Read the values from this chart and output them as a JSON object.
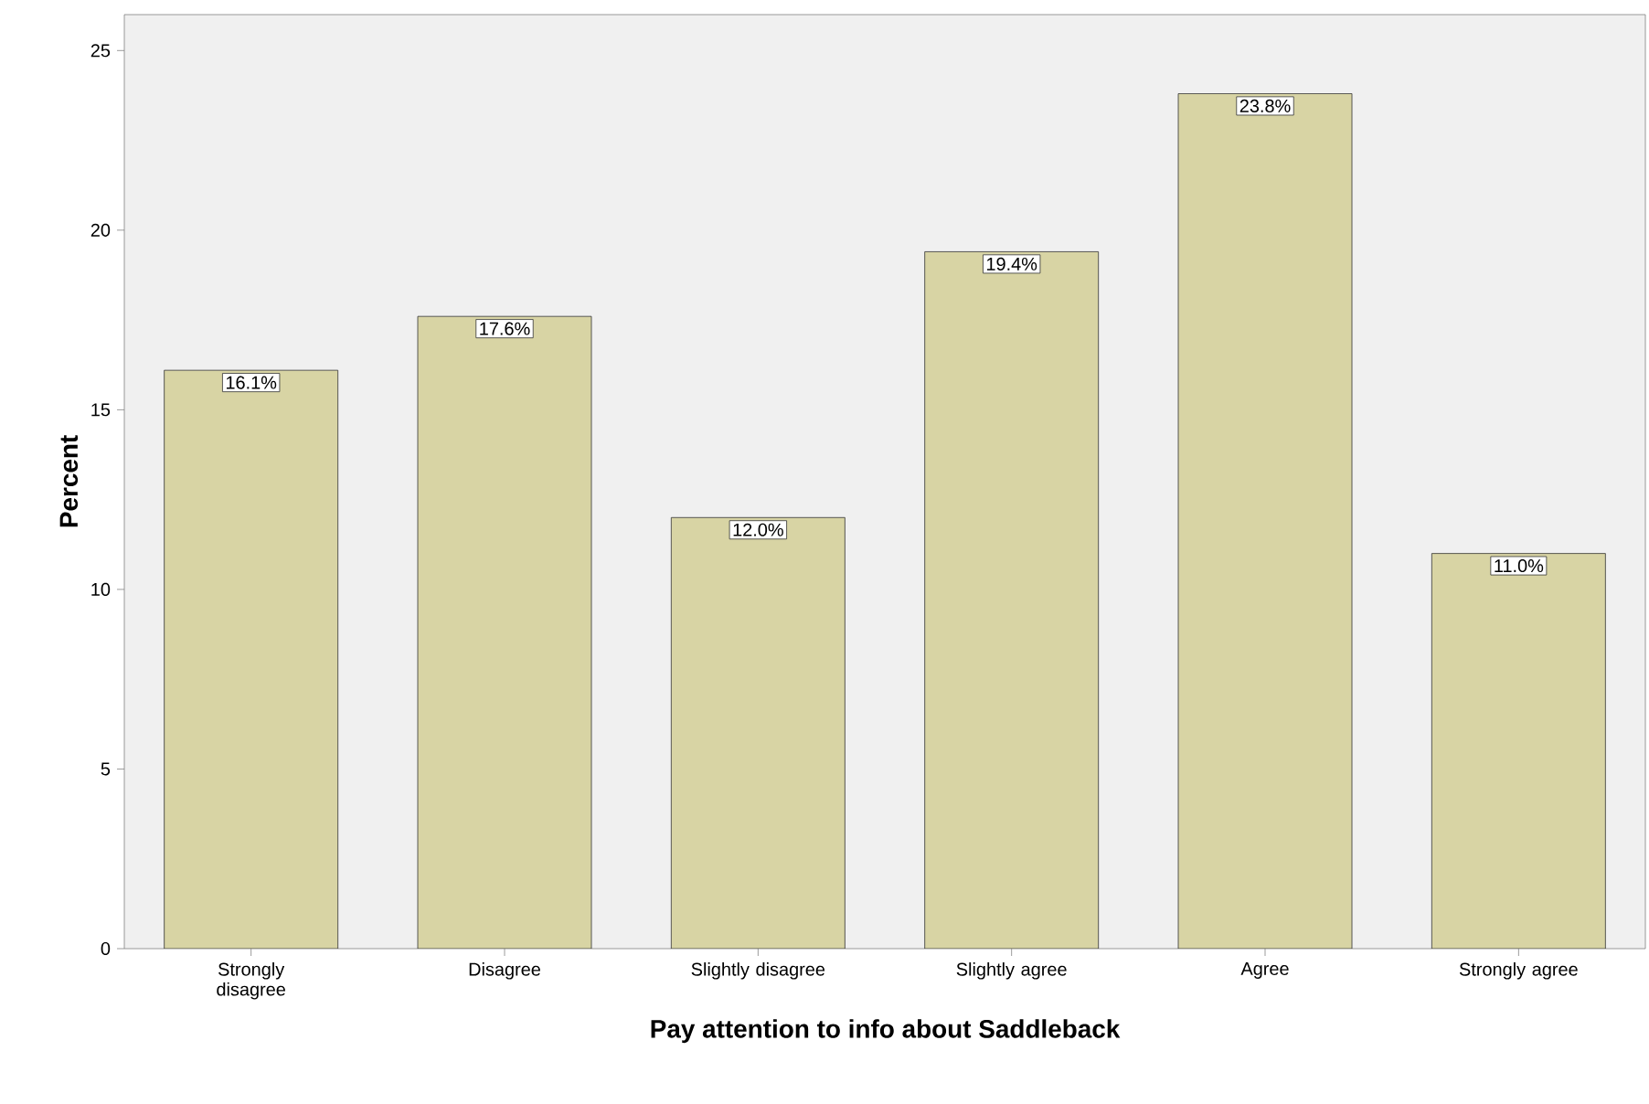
{
  "chart_data": {
    "type": "bar",
    "xlabel": "Pay attention to info about Saddleback",
    "ylabel": "Percent",
    "categories": [
      "Strongly disagree",
      "Disagree",
      "Slightly disagree",
      "Slightly agree",
      "Agree",
      "Strongly agree"
    ],
    "values": [
      16.1,
      17.6,
      12.0,
      19.4,
      23.8,
      11.0
    ],
    "value_labels": [
      "16.1%",
      "17.6%",
      "12.0%",
      "19.4%",
      "23.8%",
      "11.0%"
    ],
    "color": "#d8d4a4",
    "ylim": [
      0,
      26
    ],
    "yticks": [
      0,
      5,
      10,
      15,
      20,
      25
    ],
    "grid": false
  }
}
